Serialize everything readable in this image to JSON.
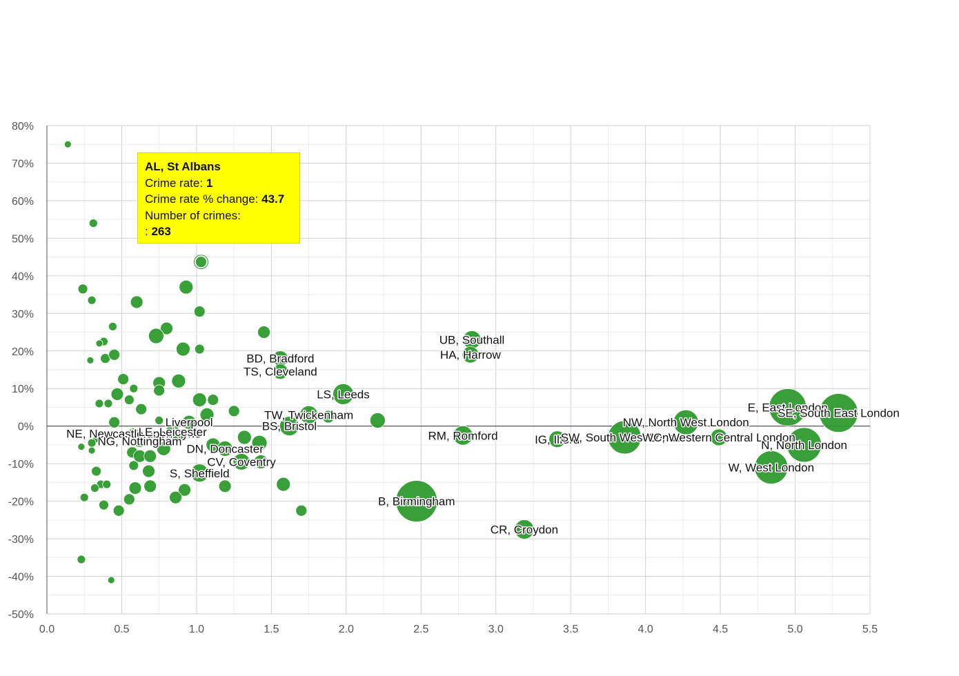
{
  "chart_data": {
    "type": "scatter",
    "subtype": "bubble",
    "title": "",
    "xlabel": "",
    "ylabel": "",
    "xlim": [
      0,
      5.5
    ],
    "ylim": [
      -50,
      80
    ],
    "x_ticks": [
      "0.0",
      "0.5",
      "1.0",
      "1.5",
      "2.0",
      "2.5",
      "3.0",
      "3.5",
      "4.0",
      "4.5",
      "5.0",
      "5.5"
    ],
    "y_ticks": [
      "-50%",
      "-40%",
      "-30%",
      "-20%",
      "-10%",
      "0%",
      "10%",
      "20%",
      "30%",
      "40%",
      "50%",
      "60%",
      "70%",
      "80%"
    ],
    "grid": true,
    "bubble_color": "#2e9a2e",
    "points": [
      {
        "x": 0.14,
        "y": 75,
        "r": 5
      },
      {
        "x": 0.31,
        "y": 54,
        "r": 6
      },
      {
        "x": 1.03,
        "y": 43.7,
        "r": 8,
        "highlight": true
      },
      {
        "x": 0.24,
        "y": 36.5,
        "r": 7
      },
      {
        "x": 0.3,
        "y": 33.5,
        "r": 6
      },
      {
        "x": 0.6,
        "y": 33,
        "r": 9
      },
      {
        "x": 0.93,
        "y": 37,
        "r": 10
      },
      {
        "x": 1.02,
        "y": 30.5,
        "r": 8
      },
      {
        "x": 0.44,
        "y": 26.5,
        "r": 6
      },
      {
        "x": 0.8,
        "y": 26,
        "r": 9
      },
      {
        "x": 0.73,
        "y": 24,
        "r": 11
      },
      {
        "x": 1.45,
        "y": 25,
        "r": 9
      },
      {
        "x": 0.38,
        "y": 22.5,
        "r": 6
      },
      {
        "x": 0.35,
        "y": 22,
        "r": 5
      },
      {
        "x": 0.91,
        "y": 20.5,
        "r": 10
      },
      {
        "x": 1.02,
        "y": 20.5,
        "r": 7
      },
      {
        "x": 0.29,
        "y": 17.5,
        "r": 5
      },
      {
        "x": 0.39,
        "y": 18,
        "r": 7
      },
      {
        "x": 0.45,
        "y": 19,
        "r": 8
      },
      {
        "x": 1.56,
        "y": 18,
        "r": 11,
        "label": "BD, Bradford"
      },
      {
        "x": 1.56,
        "y": 14.5,
        "r": 11,
        "label": "TS, Cleveland"
      },
      {
        "x": 0.51,
        "y": 12.5,
        "r": 8
      },
      {
        "x": 0.58,
        "y": 10,
        "r": 6
      },
      {
        "x": 0.75,
        "y": 11.5,
        "r": 9
      },
      {
        "x": 0.88,
        "y": 12,
        "r": 10
      },
      {
        "x": 0.75,
        "y": 9.5,
        "r": 8
      },
      {
        "x": 0.47,
        "y": 8.5,
        "r": 9
      },
      {
        "x": 1.02,
        "y": 7,
        "r": 10
      },
      {
        "x": 1.11,
        "y": 7,
        "r": 8
      },
      {
        "x": 0.35,
        "y": 6,
        "r": 6
      },
      {
        "x": 0.41,
        "y": 6,
        "r": 6
      },
      {
        "x": 0.55,
        "y": 7,
        "r": 7
      },
      {
        "x": 0.63,
        "y": 4.5,
        "r": 8
      },
      {
        "x": 1.25,
        "y": 4,
        "r": 8
      },
      {
        "x": 1.98,
        "y": 8.5,
        "r": 15,
        "label": "LS, Leeds"
      },
      {
        "x": 2.84,
        "y": 23,
        "r": 13,
        "label": "UB, Southall"
      },
      {
        "x": 2.83,
        "y": 19,
        "r": 12,
        "label": "HA, Harrow"
      },
      {
        "x": 1.07,
        "y": 3,
        "r": 10
      },
      {
        "x": 0.45,
        "y": 1,
        "r": 8
      },
      {
        "x": 0.75,
        "y": 1.5,
        "r": 6
      },
      {
        "x": 0.95,
        "y": 1,
        "r": 10,
        "label": "Liverpool"
      },
      {
        "x": 1.75,
        "y": 3,
        "r": 13,
        "label": "TW, Twickenham"
      },
      {
        "x": 1.88,
        "y": 2.5,
        "r": 9
      },
      {
        "x": 2.21,
        "y": 1.5,
        "r": 11
      },
      {
        "x": 1.62,
        "y": 0,
        "r": 14,
        "label": "BS, Bristol"
      },
      {
        "x": 4.95,
        "y": 5,
        "r": 27,
        "label": "E, East London"
      },
      {
        "x": 5.29,
        "y": 3.5,
        "r": 28,
        "label": "SE, South East London"
      },
      {
        "x": 4.27,
        "y": 1,
        "r": 18,
        "label": "NW, North West London"
      },
      {
        "x": 0.58,
        "y": -2,
        "r": 8,
        "label": "NE, Newcastle upon Tyne"
      },
      {
        "x": 0.84,
        "y": -1.5,
        "r": 10,
        "label": "LE, Leicester"
      },
      {
        "x": 0.88,
        "y": -2.5,
        "r": 9
      },
      {
        "x": 0.62,
        "y": -4,
        "r": 9,
        "label": "NG, Nottingham"
      },
      {
        "x": 0.33,
        "y": -3.5,
        "r": 5
      },
      {
        "x": 0.3,
        "y": -4.5,
        "r": 6
      },
      {
        "x": 0.23,
        "y": -5.5,
        "r": 5
      },
      {
        "x": 0.3,
        "y": -6.5,
        "r": 5
      },
      {
        "x": 0.78,
        "y": -6,
        "r": 10
      },
      {
        "x": 1.11,
        "y": -5,
        "r": 10
      },
      {
        "x": 1.19,
        "y": -6,
        "r": 11,
        "label": "DN, Doncaster"
      },
      {
        "x": 1.32,
        "y": -3,
        "r": 10
      },
      {
        "x": 1.42,
        "y": -4.5,
        "r": 11
      },
      {
        "x": 0.57,
        "y": -7,
        "r": 8
      },
      {
        "x": 0.62,
        "y": -8,
        "r": 9
      },
      {
        "x": 0.69,
        "y": -8,
        "r": 9
      },
      {
        "x": 0.58,
        "y": -10.5,
        "r": 7
      },
      {
        "x": 0.68,
        "y": -12,
        "r": 9
      },
      {
        "x": 1.3,
        "y": -9.5,
        "r": 12,
        "label": "CV, Coventry"
      },
      {
        "x": 1.43,
        "y": -9.5,
        "r": 10
      },
      {
        "x": 0.33,
        "y": -12,
        "r": 7
      },
      {
        "x": 0.36,
        "y": -15.5,
        "r": 6
      },
      {
        "x": 0.32,
        "y": -16.5,
        "r": 6
      },
      {
        "x": 0.4,
        "y": -15.5,
        "r": 6
      },
      {
        "x": 0.59,
        "y": -16.5,
        "r": 9
      },
      {
        "x": 0.69,
        "y": -16,
        "r": 9
      },
      {
        "x": 0.92,
        "y": -17,
        "r": 9
      },
      {
        "x": 1.02,
        "y": -12.5,
        "r": 13,
        "label": "S, Sheffield"
      },
      {
        "x": 1.19,
        "y": -16,
        "r": 9
      },
      {
        "x": 1.58,
        "y": -15.5,
        "r": 10
      },
      {
        "x": 0.25,
        "y": -19,
        "r": 6
      },
      {
        "x": 0.55,
        "y": -19.5,
        "r": 8
      },
      {
        "x": 0.86,
        "y": -19,
        "r": 9
      },
      {
        "x": 0.38,
        "y": -21,
        "r": 7
      },
      {
        "x": 0.48,
        "y": -22.5,
        "r": 8
      },
      {
        "x": 1.7,
        "y": -22.5,
        "r": 8
      },
      {
        "x": 0.23,
        "y": -35.5,
        "r": 6
      },
      {
        "x": 0.43,
        "y": -41,
        "r": 5
      },
      {
        "x": 2.47,
        "y": -20,
        "r": 30,
        "label": "B, Birmingham"
      },
      {
        "x": 2.78,
        "y": -2.5,
        "r": 14,
        "label": "RM, Romford"
      },
      {
        "x": 3.41,
        "y": -3.5,
        "r": 12,
        "label": "IG, Ilford"
      },
      {
        "x": 3.86,
        "y": -3,
        "r": 24,
        "label": "SW, South West London"
      },
      {
        "x": 4.49,
        "y": -3,
        "r": 12,
        "label": "WC, Western Central London"
      },
      {
        "x": 5.06,
        "y": -5,
        "r": 25,
        "label": "N, North London"
      },
      {
        "x": 4.84,
        "y": -11,
        "r": 24,
        "label": "W, West London"
      },
      {
        "x": 3.19,
        "y": -27.5,
        "r": 14,
        "label": "CR, Croydon"
      }
    ],
    "tooltip": {
      "name": "AL, St Albans",
      "rate_label": "Crime rate:",
      "rate_value": "1",
      "change_label": "Crime rate % change:",
      "change_value": "43.7",
      "count_label": "Number of crimes:",
      "count_prefix": ":",
      "count_value": "263"
    }
  }
}
